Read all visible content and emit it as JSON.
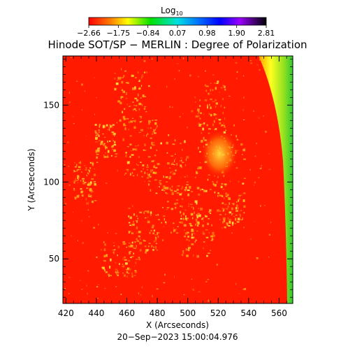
{
  "colorbar": {
    "label": "Log",
    "label_subscript": "10",
    "ticks": [
      "−2.66",
      "−1.75",
      "−0.84",
      "0.07",
      "0.98",
      "1.90",
      "2.81"
    ],
    "range": [
      -2.66,
      2.81
    ]
  },
  "plot": {
    "title": "Hinode SOT/SP − MERLIN : Degree of Polarization",
    "xlabel": "X (Arcseconds)",
    "ylabel": "Y (Arcseconds)",
    "x_ticks": [
      "420",
      "440",
      "460",
      "480",
      "500",
      "520",
      "540",
      "560"
    ],
    "y_ticks": [
      "50",
      "100",
      "150"
    ],
    "xlim": [
      418,
      569
    ],
    "ylim": [
      21,
      182
    ],
    "timestamp": "20−Sep−2023 15:00:04.976"
  },
  "colors": {
    "background_map": "#ff1a00",
    "bright_patch": "#ffdd33",
    "limb_edge": "#33cc33",
    "frame": "#000000"
  }
}
